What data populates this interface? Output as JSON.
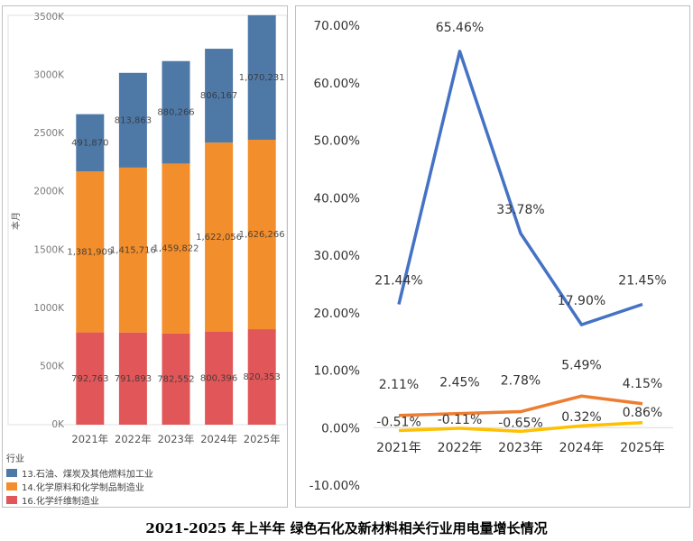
{
  "caption": "2021-2025 年上半年  绿色石化及新材料相关行业用电量增长情况",
  "colors": {
    "s13": "#4e79a7",
    "s14": "#f28e2b",
    "s16": "#e15759",
    "growth_blue": "#4472c4",
    "growth_orange": "#ed7d31",
    "growth_yellow": "#ffc000"
  },
  "chart_data": [
    {
      "type": "bar",
      "stacked": true,
      "categories": [
        "2021年",
        "2022年",
        "2023年",
        "2024年",
        "2025年"
      ],
      "ylabel": "本月",
      "ylim": [
        0,
        3500000
      ],
      "yticks": [
        0,
        500000,
        1000000,
        1500000,
        2000000,
        2500000,
        3000000,
        3500000
      ],
      "ytick_labels": [
        "0K",
        "500K",
        "1000K",
        "1500K",
        "2000K",
        "2500K",
        "3000K",
        "3500K"
      ],
      "legend_title": "行业",
      "legend_position": "bottom-left",
      "series": [
        {
          "name": "16.化学纤维制造业",
          "color_key": "s16",
          "values": [
            792763,
            791893,
            782552,
            800396,
            820353
          ],
          "labels": [
            "792,763",
            "791,893",
            "782,552",
            "800,396",
            "820,353"
          ]
        },
        {
          "name": "14.化学原料和化学制品制造业",
          "color_key": "s14",
          "values": [
            1381909,
            1415716,
            1459822,
            1622056,
            1626266
          ],
          "labels": [
            "1,381,909",
            "1,415,716",
            "1,459,822",
            "1,622,056",
            "1,626,266"
          ]
        },
        {
          "name": "13.石油、煤炭及其他燃料加工业",
          "color_key": "s13",
          "values": [
            491870,
            813863,
            880266,
            806167,
            1070231
          ],
          "labels": [
            "491,870",
            "813,863",
            "880,266",
            "806,167",
            "1,070,231"
          ]
        }
      ],
      "legend_order": [
        2,
        1,
        0
      ]
    },
    {
      "type": "line",
      "categories": [
        "2021年",
        "2022年",
        "2023年",
        "2024年",
        "2025年"
      ],
      "ylim": [
        -10,
        70
      ],
      "yticks": [
        -10,
        0,
        10,
        20,
        30,
        40,
        50,
        60,
        70
      ],
      "ytick_labels": [
        "-10.00%",
        "0.00%",
        "10.00%",
        "20.00%",
        "30.00%",
        "40.00%",
        "50.00%",
        "60.00%",
        "70.00%"
      ],
      "grid": false,
      "series": [
        {
          "color_key": "growth_blue",
          "values": [
            21.44,
            65.46,
            33.78,
            17.9,
            21.45
          ],
          "labels": [
            "21.44%",
            "65.46%",
            "33.78%",
            "17.90%",
            "21.45%"
          ]
        },
        {
          "color_key": "growth_orange",
          "values": [
            2.11,
            2.45,
            2.78,
            5.49,
            4.15
          ],
          "labels": [
            "2.11%",
            "2.45%",
            "2.78%",
            "5.49%",
            "4.15%"
          ]
        },
        {
          "color_key": "growth_yellow",
          "values": [
            -0.51,
            -0.11,
            -0.65,
            0.32,
            0.86
          ],
          "labels": [
            "-0.51%",
            "-0.11%",
            "-0.65%",
            "0.32%",
            "0.86%"
          ]
        }
      ]
    }
  ]
}
